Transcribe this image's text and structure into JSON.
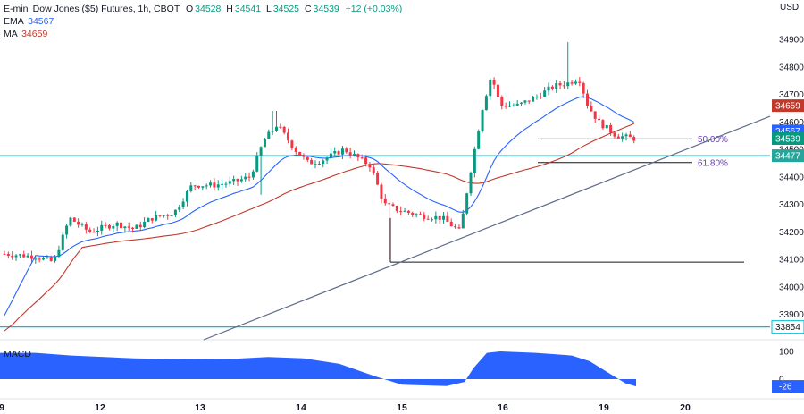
{
  "legend": {
    "title": "E-mini Dow Jones ($5) Futures, 1h, CBOT",
    "o_label": "O",
    "o": "34528",
    "h_label": "H",
    "h": "34541",
    "l_label": "L",
    "l": "34525",
    "c_label": "C",
    "c": "34539",
    "change": "+12 (+0.03%)",
    "ema_label": "EMA",
    "ema": "34567",
    "ma_label": "MA",
    "ma": "34659",
    "macd_label": "MACD"
  },
  "axis": {
    "currency": "USD",
    "price_ticks": [
      33900,
      34000,
      34100,
      34200,
      34300,
      34400,
      34500,
      34600,
      34700,
      34800,
      34900
    ],
    "macd_ticks": [
      100,
      0
    ],
    "x_labels": [
      "9",
      "12",
      "13",
      "14",
      "15",
      "16",
      "19",
      "20"
    ]
  },
  "badges": {
    "ma": "34659",
    "ema": "34567",
    "close": "34539",
    "support": "34477",
    "low_level": "33854",
    "macd": "-26"
  },
  "fib": {
    "level_50": "50.00%",
    "level_618": "61.80%"
  },
  "colors": {
    "up": "#089981",
    "down": "#f23645",
    "ema": "#2962ff",
    "ma": "#c0392b",
    "macd": "#2962ff",
    "hline": "#00bcd4",
    "trend": "#5d6d8a",
    "fib": "#673ab7"
  },
  "chart_data": {
    "type": "candlestick",
    "title": "E-mini Dow Jones ($5) Futures, 1h, CBOT",
    "ylabel": "USD",
    "ylim": [
      33830,
      34980
    ],
    "x_dates": [
      "9",
      "12",
      "13",
      "14",
      "15",
      "16",
      "19",
      "20"
    ],
    "horizontal_levels": [
      34477,
      33854,
      34090
    ],
    "fib_levels": [
      {
        "label": "50.00%",
        "value": 34538
      },
      {
        "label": "61.80%",
        "value": 34452
      }
    ],
    "trendline": {
      "from": [
        0,
        33790
      ],
      "to": [
        1,
        34620
      ]
    },
    "candles_summary": {
      "start": 34120,
      "swing_high_1": 34640,
      "swing_low": 34100,
      "swing_high_2": 34890,
      "last_close": 34539
    },
    "macd": {
      "last": -26,
      "ticks": [
        100,
        0
      ]
    }
  }
}
